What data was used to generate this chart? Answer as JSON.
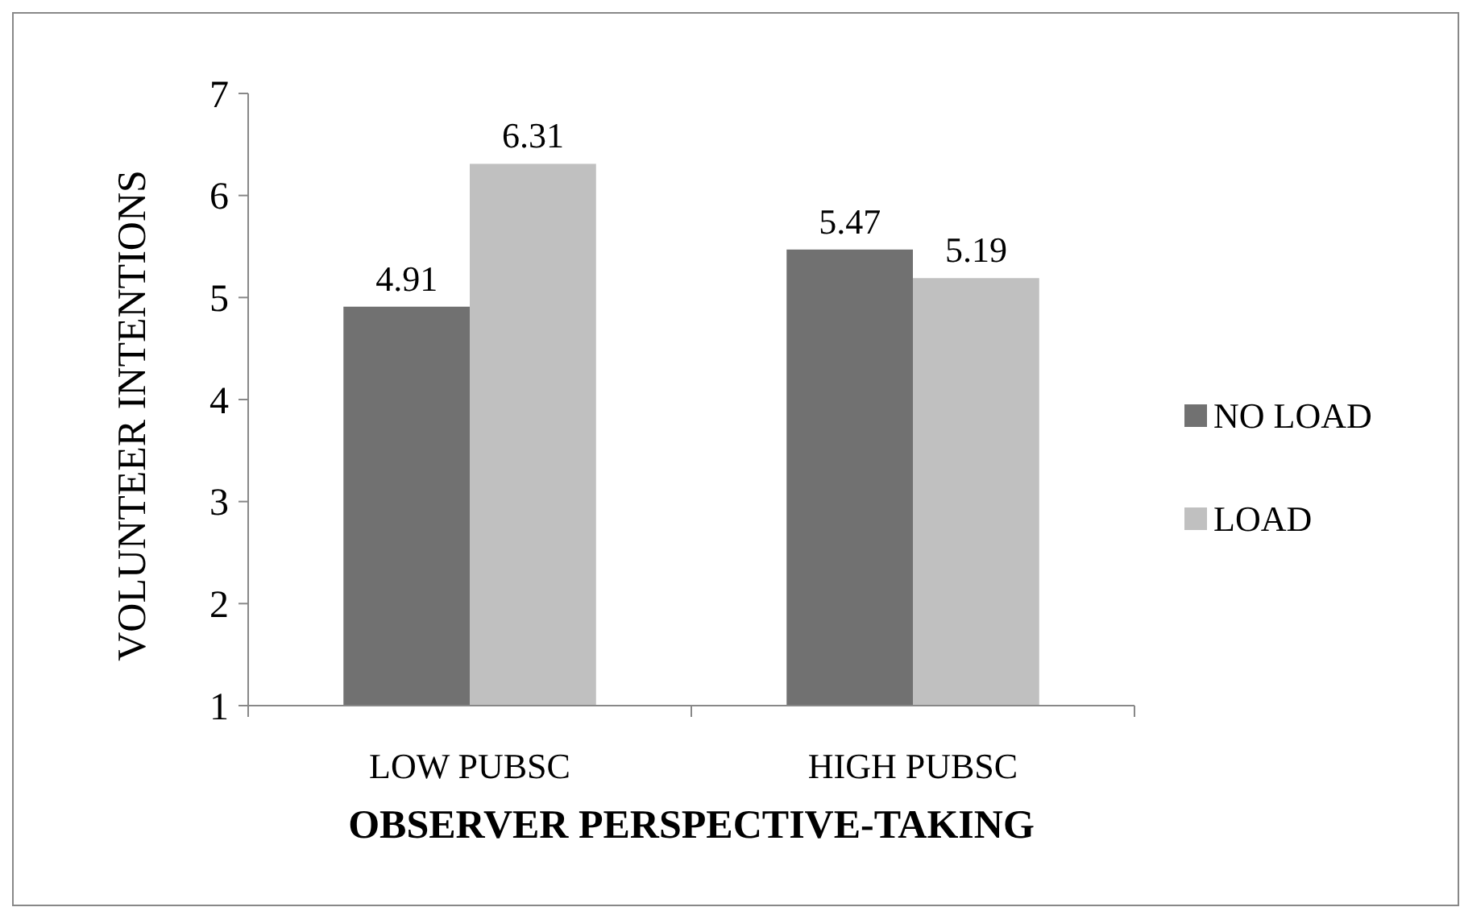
{
  "chart_data": {
    "type": "bar",
    "xlabel": "OBSERVER PERSPECTIVE-TAKING",
    "ylabel": "VOLUNTEER INTENTIONS",
    "categories": [
      "LOW PUBSC",
      "HIGH PUBSC"
    ],
    "series": [
      {
        "name": "NO LOAD",
        "color": "#717171",
        "values": [
          4.91,
          5.47
        ]
      },
      {
        "name": "LOAD",
        "color": "#c0c0c0",
        "values": [
          6.31,
          5.19
        ]
      }
    ],
    "ylim": [
      1,
      7
    ],
    "yticks": [
      1,
      2,
      3,
      4,
      5,
      6,
      7
    ],
    "data_labels": true,
    "legend": "right",
    "grid": false
  }
}
